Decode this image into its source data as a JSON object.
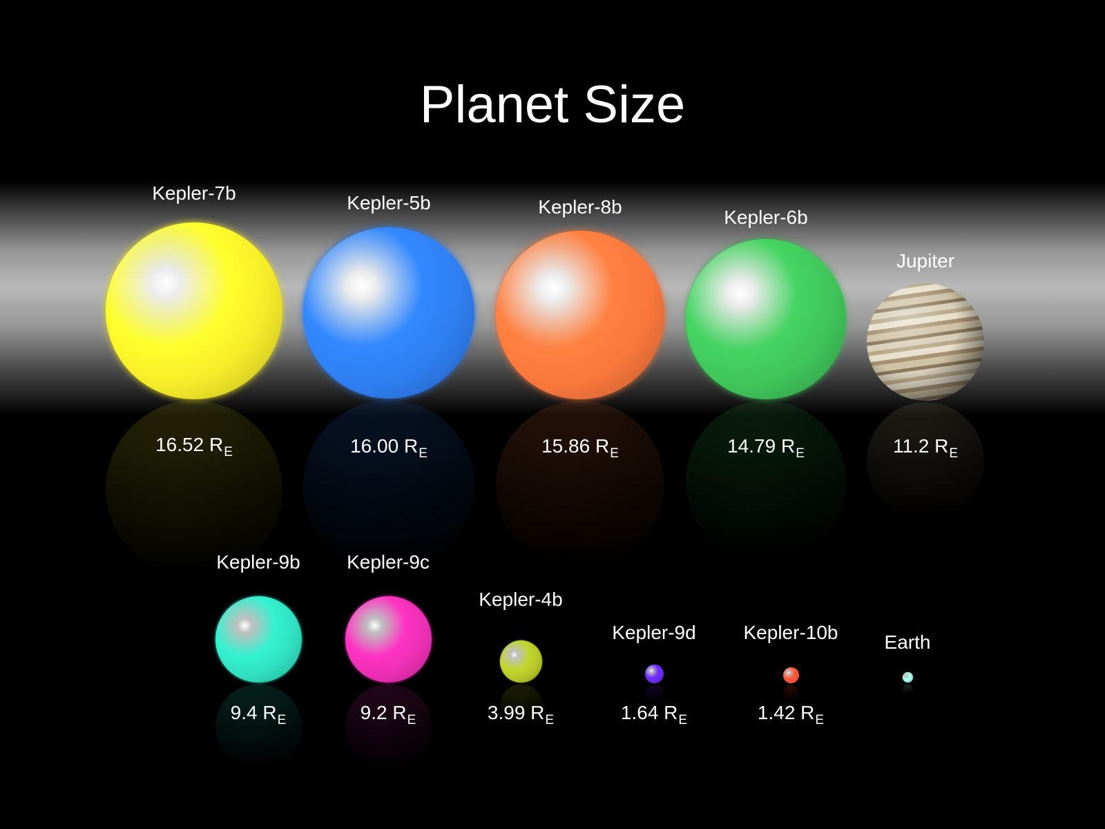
{
  "title": "Planet Size",
  "unit_symbol": "R",
  "unit_subscript": "E",
  "planets": [
    {
      "name": "Kepler-7b",
      "radius_text": "16.52",
      "radius": 16.52,
      "color": "#f6ec2a",
      "highlight": "#ffffff"
    },
    {
      "name": "Kepler-5b",
      "radius_text": "16.00",
      "radius": 16.0,
      "color": "#2f7ff2",
      "highlight": "#ffffff"
    },
    {
      "name": "Kepler-8b",
      "radius_text": "15.86",
      "radius": 15.86,
      "color": "#f9773c",
      "highlight": "#ffffff"
    },
    {
      "name": "Kepler-6b",
      "radius_text": "14.79",
      "radius": 14.79,
      "color": "#3fc45a",
      "highlight": "#ffffff"
    },
    {
      "name": "Jupiter",
      "radius_text": "11.2",
      "radius": 11.2,
      "color": "#c9b992",
      "highlight": "#ffffff"
    },
    {
      "name": "Kepler-9b",
      "radius_text": "9.4",
      "radius": 9.4,
      "color": "#2fe0c0",
      "highlight": "#ffffff"
    },
    {
      "name": "Kepler-9c",
      "radius_text": "9.2",
      "radius": 9.2,
      "color": "#ec2fb4",
      "highlight": "#ffffff"
    },
    {
      "name": "Kepler-4b",
      "radius_text": "3.99",
      "radius": 3.99,
      "color": "#b4c62a",
      "highlight": "#ffffff"
    },
    {
      "name": "Kepler-9d",
      "radius_text": "1.64",
      "radius": 1.64,
      "color": "#6a2ae8",
      "highlight": "#ffffff"
    },
    {
      "name": "Kepler-10b",
      "radius_text": "1.42",
      "radius": 1.42,
      "color": "#f4553a",
      "highlight": "#ffffff"
    },
    {
      "name": "Earth",
      "radius_text": "",
      "radius": 1.0,
      "color": "#9ff0e2",
      "highlight": "#ffffff"
    }
  ]
}
